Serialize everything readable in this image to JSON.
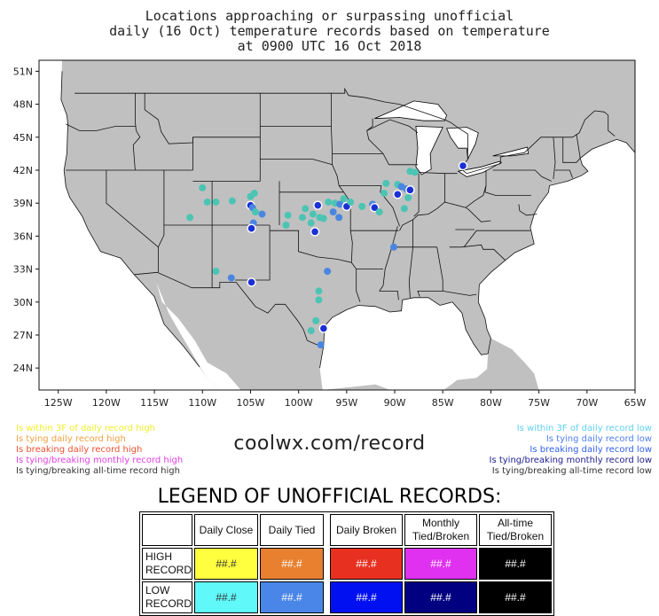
{
  "title": {
    "line1": "Locations approaching or surpassing unofficial",
    "line2": "daily (16 Oct) temperature records based on temperature",
    "line3": "at 0900 UTC 16 Oct 2018"
  },
  "map": {
    "lat_labels": [
      "51N",
      "48N",
      "45N",
      "42N",
      "39N",
      "36N",
      "33N",
      "30N",
      "27N",
      "24N"
    ],
    "lon_labels": [
      "125W",
      "120W",
      "115W",
      "110W",
      "105W",
      "100W",
      "95W",
      "90W",
      "85W",
      "80W",
      "75W",
      "70W",
      "65W"
    ],
    "colors": {
      "land": "#c0c0c0",
      "ocean": "#ffffff",
      "daily_close_low": "#4cc4b4",
      "daily_tied_low": "#4a86e0",
      "daily_broken_low": "#1b2fd6"
    },
    "markers": [
      {
        "lon": -104.6,
        "lat": 39.9,
        "type": "daily_close_low"
      },
      {
        "lon": -105.0,
        "lat": 38.8,
        "type": "daily_broken_low"
      },
      {
        "lon": -108.6,
        "lat": 39.1,
        "type": "daily_close_low"
      },
      {
        "lon": -106.9,
        "lat": 39.2,
        "type": "daily_close_low"
      },
      {
        "lon": -104.8,
        "lat": 38.6,
        "type": "daily_tied_low"
      },
      {
        "lon": -104.5,
        "lat": 38.2,
        "type": "daily_close_low"
      },
      {
        "lon": -103.8,
        "lat": 38.0,
        "type": "daily_tied_low"
      },
      {
        "lon": -104.7,
        "lat": 37.2,
        "type": "daily_tied_low"
      },
      {
        "lon": -104.9,
        "lat": 36.7,
        "type": "daily_broken_low"
      },
      {
        "lon": -105.0,
        "lat": 39.6,
        "type": "daily_close_low"
      },
      {
        "lon": -110.0,
        "lat": 40.4,
        "type": "daily_close_low"
      },
      {
        "lon": -111.3,
        "lat": 37.7,
        "type": "daily_close_low"
      },
      {
        "lon": -109.5,
        "lat": 39.1,
        "type": "daily_close_low"
      },
      {
        "lon": -101.1,
        "lat": 37.9,
        "type": "daily_close_low"
      },
      {
        "lon": -101.3,
        "lat": 37.0,
        "type": "daily_close_low"
      },
      {
        "lon": -99.3,
        "lat": 38.5,
        "type": "daily_close_low"
      },
      {
        "lon": -98.0,
        "lat": 38.8,
        "type": "daily_broken_low"
      },
      {
        "lon": -98.5,
        "lat": 38.0,
        "type": "daily_close_low"
      },
      {
        "lon": -97.8,
        "lat": 37.7,
        "type": "daily_close_low"
      },
      {
        "lon": -97.4,
        "lat": 37.6,
        "type": "daily_close_low"
      },
      {
        "lon": -96.9,
        "lat": 39.1,
        "type": "daily_close_low"
      },
      {
        "lon": -96.2,
        "lat": 39.0,
        "type": "daily_close_low"
      },
      {
        "lon": -95.7,
        "lat": 38.9,
        "type": "daily_tied_low"
      },
      {
        "lon": -95.3,
        "lat": 39.4,
        "type": "daily_close_low"
      },
      {
        "lon": -95.0,
        "lat": 38.7,
        "type": "daily_broken_low"
      },
      {
        "lon": -94.6,
        "lat": 39.1,
        "type": "daily_close_low"
      },
      {
        "lon": -96.4,
        "lat": 38.2,
        "type": "daily_tied_low"
      },
      {
        "lon": -95.8,
        "lat": 37.7,
        "type": "daily_tied_low"
      },
      {
        "lon": -98.3,
        "lat": 36.4,
        "type": "daily_broken_low"
      },
      {
        "lon": -98.7,
        "lat": 37.2,
        "type": "daily_close_low"
      },
      {
        "lon": -99.6,
        "lat": 37.7,
        "type": "daily_close_low"
      },
      {
        "lon": -93.4,
        "lat": 38.7,
        "type": "daily_close_low"
      },
      {
        "lon": -92.3,
        "lat": 38.9,
        "type": "daily_tied_low"
      },
      {
        "lon": -92.1,
        "lat": 38.6,
        "type": "daily_broken_low"
      },
      {
        "lon": -91.6,
        "lat": 38.2,
        "type": "daily_close_low"
      },
      {
        "lon": -90.9,
        "lat": 40.8,
        "type": "daily_close_low"
      },
      {
        "lon": -91.1,
        "lat": 39.9,
        "type": "daily_close_low"
      },
      {
        "lon": -89.7,
        "lat": 40.7,
        "type": "daily_close_low"
      },
      {
        "lon": -89.3,
        "lat": 40.5,
        "type": "daily_tied_low"
      },
      {
        "lon": -88.8,
        "lat": 40.3,
        "type": "daily_tied_low"
      },
      {
        "lon": -88.4,
        "lat": 40.2,
        "type": "daily_broken_low"
      },
      {
        "lon": -89.7,
        "lat": 39.8,
        "type": "daily_broken_low"
      },
      {
        "lon": -88.6,
        "lat": 39.5,
        "type": "daily_close_low"
      },
      {
        "lon": -89.0,
        "lat": 38.5,
        "type": "daily_close_low"
      },
      {
        "lon": -88.4,
        "lat": 41.9,
        "type": "daily_close_low"
      },
      {
        "lon": -87.9,
        "lat": 41.8,
        "type": "daily_close_low"
      },
      {
        "lon": -82.9,
        "lat": 42.4,
        "type": "daily_broken_low"
      },
      {
        "lon": -90.1,
        "lat": 35.0,
        "type": "daily_tied_low"
      },
      {
        "lon": -107.0,
        "lat": 32.2,
        "type": "daily_tied_low"
      },
      {
        "lon": -108.6,
        "lat": 32.8,
        "type": "daily_close_low"
      },
      {
        "lon": -104.9,
        "lat": 31.8,
        "type": "daily_broken_low"
      },
      {
        "lon": -97.0,
        "lat": 32.8,
        "type": "daily_tied_low"
      },
      {
        "lon": -97.9,
        "lat": 31.0,
        "type": "daily_close_low"
      },
      {
        "lon": -97.9,
        "lat": 30.2,
        "type": "daily_close_low"
      },
      {
        "lon": -98.2,
        "lat": 28.3,
        "type": "daily_close_low"
      },
      {
        "lon": -98.7,
        "lat": 27.4,
        "type": "daily_close_low"
      },
      {
        "lon": -97.4,
        "lat": 27.6,
        "type": "daily_broken_low"
      },
      {
        "lon": -97.7,
        "lat": 26.1,
        "type": "daily_tied_low"
      }
    ]
  },
  "legend_left": {
    "line1": "Is within 3F of daily record high",
    "line2": "Is tying daily record high",
    "line3": "Is breaking daily record high",
    "line4": "Is tying/breaking monthly record high",
    "line5": "Is tying/breaking all-time record high",
    "color1": "#f0f028",
    "color2": "#f0a040",
    "color3": "#f05030",
    "color4": "#e040e0",
    "color5": "#333333"
  },
  "legend_right": {
    "line1": "Is within 3F of daily record low",
    "line2": "Is tying daily record low",
    "line3": "Is breaking daily record low",
    "line4": "Is tying/breaking monthly record low",
    "line5": "Is tying/breaking all-time record low",
    "color1": "#60d0f0",
    "color2": "#5080f0",
    "color3": "#3060f0",
    "color4": "#202090",
    "color5": "#333333"
  },
  "website": "coolwx.com/record",
  "legend_table": {
    "heading": "LEGEND OF UNOFFICIAL RECORDS:",
    "col_daily_close": "Daily Close",
    "col_daily_tied": "Daily Tied",
    "col_daily_broken": "Daily Broken",
    "col_monthly_1": "Monthly",
    "col_monthly_2": "Tied/Broken",
    "col_alltime_1": "All-time",
    "col_alltime_2": "Tied/Broken",
    "row_high_1": "HIGH",
    "row_high_2": "RECORD",
    "row_low_1": "LOW",
    "row_low_2": "RECORD",
    "sample": "##.#",
    "high_colors": [
      "#ffff40",
      "#e88030",
      "#e83020",
      "#e030f0",
      "#000000"
    ],
    "low_colors": [
      "#60f8f8",
      "#4a86e8",
      "#0010f0",
      "#000080",
      "#000000"
    ],
    "high_text_colors": [
      "#333333",
      "#ffffff",
      "#ffffff",
      "#ffffff",
      "#ffffff"
    ],
    "low_text_colors": [
      "#333333",
      "#ffffff",
      "#ffffff",
      "#ffffff",
      "#ffffff"
    ]
  }
}
